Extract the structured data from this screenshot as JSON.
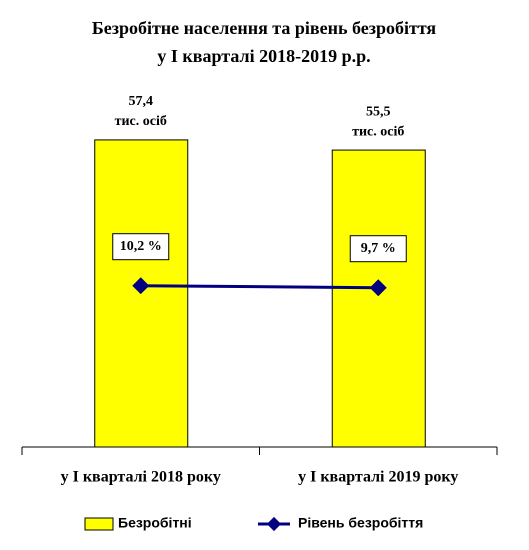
{
  "chart_data": {
    "type": "bar",
    "title": [
      "Безробітне населення та рівень безробіття",
      "у I кварталі 2018-2019 р.р."
    ],
    "categories": [
      "у I кварталі 2018 року",
      "у I кварталі 2019 року"
    ],
    "ylim": [
      0,
      60
    ],
    "y2lim": [
      -30,
      50
    ],
    "series": [
      {
        "name": "Безробітні",
        "type": "bar",
        "color": "#ffff00",
        "values": [
          57.4,
          55.5
        ],
        "value_labels": [
          "57,4",
          "55,5"
        ],
        "unit_label": "тис. осіб"
      },
      {
        "name": "Рівень безробіття",
        "type": "line",
        "axis": "y2",
        "color": "#000080",
        "values": [
          10.2,
          9.7
        ],
        "value_labels": [
          "10,2 %",
          "9,7 %"
        ]
      }
    ]
  }
}
